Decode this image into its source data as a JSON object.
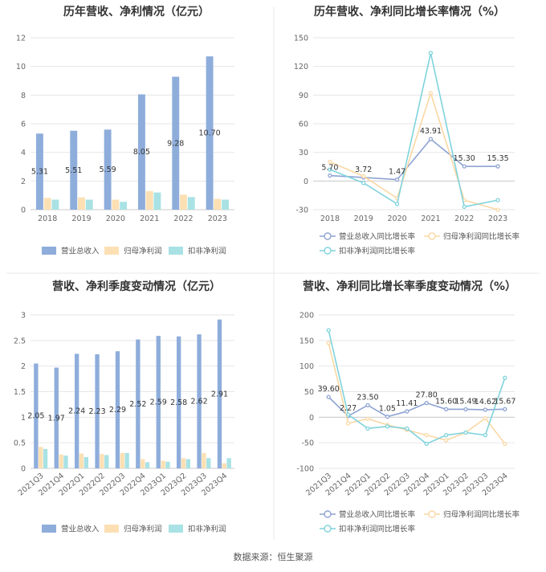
{
  "source": "数据来源：恒生聚源",
  "colors": {
    "revenue": "#8EADDB",
    "net_profit": "#FCE0B4",
    "deducted_profit": "#A9E2E4",
    "rev_line": "#8EA3D3",
    "np_line": "#FAD8A4",
    "dp_line": "#7FD3DC",
    "grid": "#E6E6E6",
    "axis": "#CCCCCC",
    "divider": "#E8E8E8"
  },
  "chart_data": [
    {
      "id": "annual_bar",
      "type": "bar",
      "title": "历年营收、净利情况（亿元）",
      "categories": [
        "2018",
        "2019",
        "2020",
        "2021",
        "2022",
        "2023"
      ],
      "ylim": [
        0,
        12
      ],
      "yticks": [
        0,
        2,
        4,
        6,
        8,
        10,
        12
      ],
      "grid": true,
      "legend": "bottom",
      "series": [
        {
          "name": "营业总收入",
          "values": [
            5.31,
            5.51,
            5.59,
            8.05,
            9.28,
            10.7
          ],
          "labels": [
            "5.31",
            "5.51",
            "5.59",
            "8.05",
            "9.28",
            "10.70"
          ]
        },
        {
          "name": "归母净利润",
          "values": [
            0.82,
            0.86,
            0.7,
            1.3,
            1.05,
            0.75
          ]
        },
        {
          "name": "扣非净利润",
          "values": [
            0.7,
            0.7,
            0.55,
            1.2,
            0.88,
            0.7
          ]
        }
      ]
    },
    {
      "id": "annual_line",
      "type": "line",
      "title": "历年营收、净利同比增长率情况（%）",
      "categories": [
        "2018",
        "2019",
        "2020",
        "2021",
        "2022",
        "2023"
      ],
      "ylim": [
        -30,
        150
      ],
      "yticks": [
        -30,
        0,
        30,
        60,
        90,
        120,
        150
      ],
      "grid": true,
      "legend": "bottom",
      "series": [
        {
          "name": "营业总收入同比增长率",
          "values": [
            5.7,
            3.72,
            1.47,
            43.91,
            15.3,
            15.35
          ],
          "labels": [
            "5.70",
            "3.72",
            "1.47",
            "43.91",
            "15.30",
            "15.35"
          ]
        },
        {
          "name": "归母净利润同比增长率",
          "values": [
            20,
            5,
            -18,
            92,
            -20,
            -30
          ]
        },
        {
          "name": "扣非净利润同比增长率",
          "values": [
            12,
            -2,
            -24,
            134,
            -27,
            -20
          ]
        }
      ]
    },
    {
      "id": "quarter_bar",
      "type": "bar",
      "title": "营收、净利季度变动情况（亿元）",
      "categories": [
        "2021Q3",
        "2021Q4",
        "2022Q1",
        "2022Q2",
        "2022Q3",
        "2022Q4",
        "2023Q1",
        "2023Q2",
        "2023Q3",
        "2023Q4"
      ],
      "ylim": [
        0,
        3
      ],
      "yticks": [
        0,
        0.5,
        1,
        1.5,
        2,
        2.5,
        3
      ],
      "grid": true,
      "legend": "bottom",
      "series": [
        {
          "name": "营业总收入",
          "values": [
            2.05,
            1.97,
            2.24,
            2.23,
            2.29,
            2.52,
            2.59,
            2.58,
            2.62,
            2.91
          ],
          "labels": [
            "2.05",
            "1.97",
            "2.24",
            "2.23",
            "2.29",
            "2.52",
            "2.59",
            "2.58",
            "2.62",
            "2.91"
          ]
        },
        {
          "name": "归母净利润",
          "values": [
            0.42,
            0.27,
            0.29,
            0.28,
            0.3,
            0.18,
            0.15,
            0.2,
            0.3,
            0.1
          ]
        },
        {
          "name": "扣非净利润",
          "values": [
            0.38,
            0.25,
            0.22,
            0.26,
            0.3,
            0.12,
            0.13,
            0.18,
            0.2,
            0.2
          ]
        }
      ]
    },
    {
      "id": "quarter_line",
      "type": "line",
      "title": "营收、净利同比增长率季度变动情况（%）",
      "categories": [
        "2021Q3",
        "2021Q4",
        "2022Q1",
        "2022Q2",
        "2022Q3",
        "2022Q4",
        "2023Q1",
        "2023Q2",
        "2023Q3",
        "2023Q4"
      ],
      "ylim": [
        -100,
        200
      ],
      "yticks": [
        -100,
        -50,
        0,
        50,
        100,
        150,
        200
      ],
      "grid": true,
      "legend": "bottom",
      "series": [
        {
          "name": "营业总收入同比增长率",
          "values": [
            39.6,
            2.27,
            23.5,
            1.05,
            11.41,
            27.8,
            15.6,
            15.49,
            14.62,
            15.67
          ],
          "labels": [
            "39.60",
            "2.27",
            "23.50",
            "1.05",
            "11.41",
            "27.80",
            "15.60",
            "15.49",
            "14.62",
            "15.67"
          ]
        },
        {
          "name": "归母净利润同比增长率",
          "values": [
            145,
            -12,
            -3,
            -15,
            -25,
            -35,
            -45,
            -30,
            -2,
            -52
          ]
        },
        {
          "name": "扣非净利润同比增长率",
          "values": [
            170,
            5,
            -22,
            -18,
            -22,
            -52,
            -35,
            -30,
            -35,
            77
          ]
        }
      ]
    }
  ]
}
